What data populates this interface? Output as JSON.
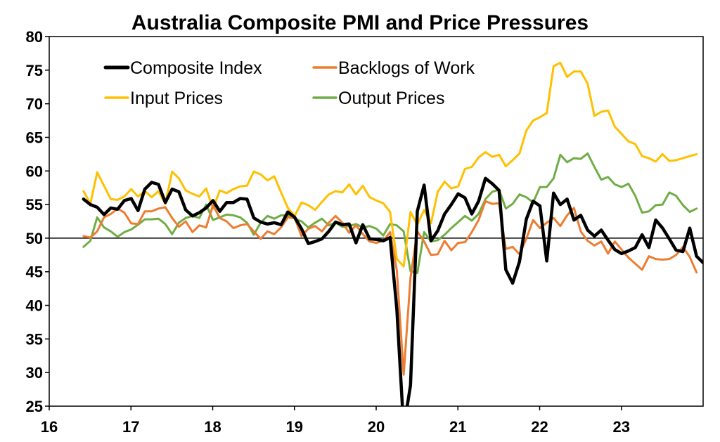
{
  "chart_data": {
    "type": "line",
    "title": "Australia Composite PMI and Price Pressures",
    "xlabel": "",
    "ylabel": "",
    "ylim": [
      25,
      80
    ],
    "xlim": [
      2016,
      2024
    ],
    "yticks": [
      25,
      30,
      35,
      40,
      45,
      50,
      55,
      60,
      65,
      70,
      75,
      80
    ],
    "xticks": [
      {
        "label": "16",
        "value": 2016
      },
      {
        "label": "17",
        "value": 2017
      },
      {
        "label": "18",
        "value": 2018
      },
      {
        "label": "19",
        "value": 2019
      },
      {
        "label": "20",
        "value": 2020
      },
      {
        "label": "21",
        "value": 2021
      },
      {
        "label": "22",
        "value": 2022
      },
      {
        "label": "23",
        "value": 2023
      }
    ],
    "reference_line": 50,
    "grid": false,
    "legend_position": "top-left",
    "x_start": 2016.42,
    "x_step": 0.0833333,
    "series": [
      {
        "name": "Composite Index",
        "color": "#000000",
        "width": 4.5,
        "values": [
          55.8,
          55.0,
          54.6,
          53.5,
          54.5,
          54.3,
          55.6,
          55.9,
          54.1,
          57.3,
          58.3,
          58.0,
          55.3,
          57.3,
          56.9,
          54.2,
          53.3,
          53.8,
          54.5,
          55.6,
          54.0,
          55.3,
          55.3,
          55.9,
          55.8,
          53.0,
          52.4,
          52.1,
          52.3,
          52.0,
          53.9,
          53.1,
          51.4,
          49.2,
          49.5,
          49.9,
          51.0,
          52.4,
          52.0,
          52.1,
          49.3,
          52.0,
          49.9,
          49.8,
          49.6,
          50.1,
          39.4,
          21.7,
          28.1,
          54.0,
          57.9,
          49.6,
          51.1,
          53.6,
          55.0,
          56.6,
          56.0,
          53.6,
          55.5,
          58.9,
          58.1,
          57.1,
          45.3,
          43.3,
          46.5,
          52.8,
          55.5,
          54.8,
          46.6,
          56.7,
          55.0,
          55.8,
          52.7,
          53.4,
          51.2,
          50.3,
          51.2,
          49.7,
          48.3,
          47.7,
          48.1,
          48.6,
          50.5,
          48.6,
          52.7,
          51.5,
          49.9,
          48.2,
          48.0,
          51.5,
          47.3,
          46.3
        ]
      },
      {
        "name": "Backlogs of Work",
        "color": "#ED7D31",
        "width": 3,
        "values": [
          50.3,
          50.1,
          51.0,
          53.1,
          53.6,
          54.4,
          53.8,
          52.2,
          52.1,
          54.0,
          54.0,
          54.4,
          54.6,
          53.0,
          51.7,
          52.5,
          50.9,
          51.9,
          51.6,
          54.9,
          53.0,
          52.5,
          51.5,
          51.9,
          52.1,
          51.0,
          49.9,
          51.0,
          50.6,
          51.6,
          53.1,
          53.0,
          50.3,
          51.4,
          51.8,
          51.0,
          52.3,
          53.3,
          52.3,
          50.8,
          51.9,
          50.6,
          49.5,
          49.3,
          49.6,
          50.9,
          45.2,
          29.7,
          44.1,
          51.0,
          49.5,
          47.5,
          47.6,
          49.6,
          48.2,
          49.3,
          49.4,
          50.9,
          52.7,
          55.5,
          55.1,
          55.2,
          48.4,
          48.7,
          47.6,
          49.9,
          52.7,
          51.5,
          52.3,
          53.0,
          51.8,
          53.4,
          54.5,
          51.0,
          49.6,
          48.9,
          49.5,
          47.7,
          49.5,
          48.3,
          47.1,
          46.2,
          45.3,
          47.3,
          46.9,
          46.8,
          46.9,
          47.5,
          48.7,
          47.2,
          44.9
        ]
      },
      {
        "name": "Input Prices",
        "color": "#FFC000",
        "width": 3,
        "values": [
          57.0,
          55.1,
          59.8,
          57.8,
          55.8,
          55.7,
          56.2,
          57.3,
          56.2,
          57.0,
          56.1,
          57.0,
          55.1,
          59.9,
          58.9,
          57.1,
          56.6,
          56.2,
          57.4,
          54.4,
          57.1,
          56.7,
          57.3,
          57.7,
          57.8,
          59.9,
          59.5,
          58.6,
          59.2,
          56.8,
          54.5,
          53.3,
          55.3,
          54.9,
          54.2,
          55.4,
          56.5,
          57.0,
          56.8,
          58.0,
          56.5,
          57.8,
          56.1,
          55.6,
          55.2,
          53.9,
          46.9,
          45.8,
          53.9,
          52.0,
          54.2,
          52.2,
          56.9,
          58.4,
          57.4,
          57.7,
          60.3,
          60.6,
          62.0,
          62.8,
          62.1,
          62.4,
          60.7,
          61.6,
          62.6,
          66.0,
          67.5,
          68.0,
          68.6,
          75.6,
          76.1,
          74.0,
          74.8,
          74.8,
          73.0,
          68.2,
          68.8,
          69.0,
          66.6,
          65.5,
          64.4,
          64.0,
          62.2,
          61.9,
          61.4,
          62.5,
          61.5,
          61.6,
          61.9,
          62.2,
          62.5
        ]
      },
      {
        "name": "Output Prices",
        "color": "#70AD47",
        "width": 3,
        "values": [
          48.7,
          49.6,
          53.1,
          51.6,
          51.0,
          50.2,
          50.9,
          51.3,
          52.0,
          52.8,
          52.8,
          52.9,
          52.1,
          50.6,
          52.3,
          53.0,
          53.3,
          53.0,
          55.0,
          52.7,
          53.1,
          53.5,
          53.4,
          53.1,
          52.3,
          50.5,
          52.3,
          53.3,
          52.9,
          53.4,
          53.4,
          52.9,
          52.5,
          51.6,
          52.3,
          52.9,
          51.9,
          52.3,
          51.7,
          51.8,
          52.1,
          51.6,
          51.8,
          51.4,
          50.4,
          52.1,
          51.9,
          51.0,
          45.1,
          44.8,
          50.9,
          49.5,
          49.7,
          50.5,
          51.5,
          52.4,
          53.3,
          52.6,
          53.6,
          55.8,
          56.9,
          57.2,
          54.4,
          55.1,
          56.5,
          56.1,
          55.3,
          57.6,
          57.6,
          58.9,
          62.4,
          61.3,
          61.9,
          61.8,
          62.6,
          60.6,
          58.7,
          59.1,
          58.0,
          57.6,
          58.1,
          56.3,
          53.8,
          54.0,
          54.9,
          55.0,
          56.8,
          56.3,
          54.9,
          53.9,
          54.4
        ]
      }
    ]
  }
}
